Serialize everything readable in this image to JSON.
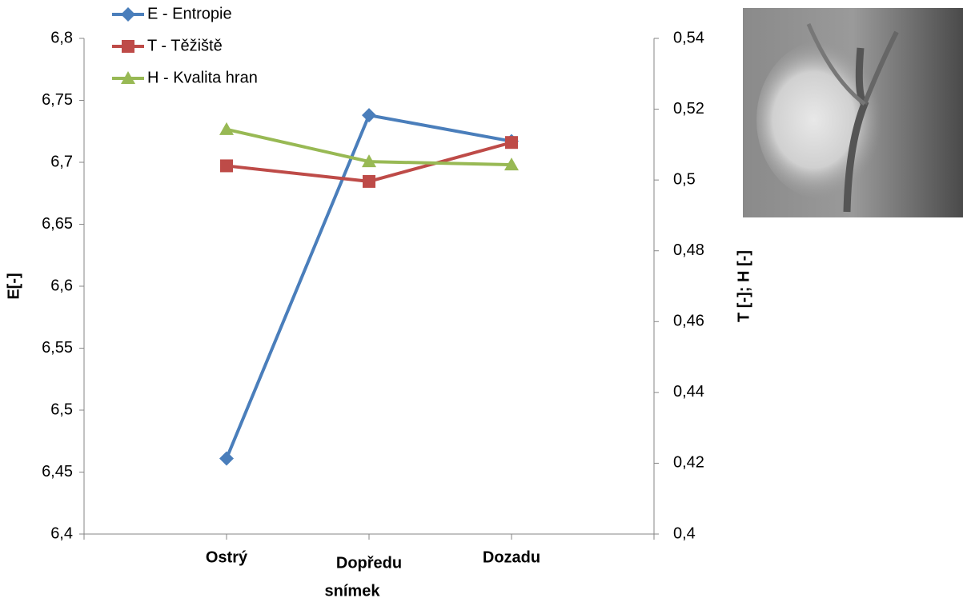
{
  "chart_data": {
    "type": "line",
    "x_label": "snímek",
    "y_label": "E[-]",
    "y2_label": "T [-]; H [-]",
    "categories": [
      "Ostrý",
      "Dopředu",
      "Dozadu"
    ],
    "series": [
      {
        "name": "E - Entropie",
        "color": "#4a7ebb",
        "marker": "diamond",
        "values": [
          6.461,
          6.738,
          6.717
        ]
      },
      {
        "name": "T - Těžiště",
        "color": "#be4b48",
        "marker": "square",
        "axis": "y2",
        "values": [
          0.504,
          0.4996,
          0.5106
        ]
      },
      {
        "name": "H - Kvalita hran",
        "color": "#98b954",
        "marker": "triangle",
        "axis": "y2",
        "values": [
          0.5143,
          0.5052,
          0.5043
        ]
      }
    ],
    "ylim": [
      6.4,
      6.8
    ],
    "yticks": [
      {
        "value": 6.4,
        "label": "6,4"
      },
      {
        "value": 6.45,
        "label": "6,45"
      },
      {
        "value": 6.5,
        "label": "6,5"
      },
      {
        "value": 6.55,
        "label": "6,55"
      },
      {
        "value": 6.6,
        "label": "6,6"
      },
      {
        "value": 6.65,
        "label": "6,65"
      },
      {
        "value": 6.7,
        "label": "6,7"
      },
      {
        "value": 6.75,
        "label": "6,75"
      },
      {
        "value": 6.8,
        "label": "6,8"
      }
    ],
    "y2lim": [
      0.4,
      0.54
    ],
    "y2ticks": [
      {
        "value": 0.4,
        "label": "0,4"
      },
      {
        "value": 0.42,
        "label": "0,42"
      },
      {
        "value": 0.44,
        "label": "0,44"
      },
      {
        "value": 0.46,
        "label": "0,46"
      },
      {
        "value": 0.48,
        "label": "0,48"
      },
      {
        "value": 0.5,
        "label": "0,5"
      },
      {
        "value": 0.52,
        "label": "0,52"
      },
      {
        "value": 0.54,
        "label": "0,54"
      }
    ],
    "grid": false,
    "legend": "top-left"
  }
}
